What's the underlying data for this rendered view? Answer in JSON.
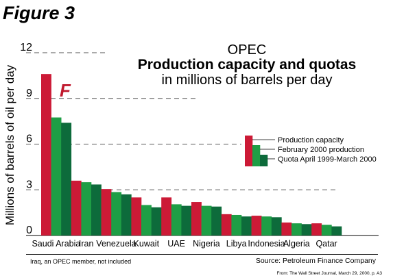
{
  "figure_label": "Figure 3",
  "title_line1": "OPEC",
  "title_line2": "Production capacity and quotas",
  "title_line3": "in millions of barrels per day",
  "annotation_mark": "F",
  "footnote": "Iraq, an OPEC member, not included",
  "source": "Source: Petroleum Finance Company",
  "credit": "From: The Wall Street Journal, March 29, 2000, p. A3",
  "colors": {
    "capacity": "#cc1a36",
    "production": "#1e9e45",
    "quota": "#0d6b3b",
    "mark": "#c0192e"
  },
  "chart_data": {
    "type": "bar",
    "title": "Production capacity and quotas",
    "ylabel": "Millions of barrels of oil per day",
    "xlabel": "",
    "ylim": [
      0,
      12
    ],
    "yticks": [
      0,
      3,
      6,
      9,
      12
    ],
    "grid": "dashed, partial",
    "legend_position": "right",
    "categories": [
      "Saudi Arabia",
      "Iran",
      "Venezuela",
      "Kuwait",
      "UAE",
      "Nigeria",
      "Libya",
      "Indonesia",
      "Algeria",
      "Qatar"
    ],
    "series": [
      {
        "name": "Production capacity",
        "values": [
          10.6,
          3.6,
          3.05,
          2.5,
          2.5,
          2.2,
          1.4,
          1.3,
          0.85,
          0.8
        ]
      },
      {
        "name": "February 2000 production",
        "values": [
          7.75,
          3.5,
          2.85,
          2.0,
          2.05,
          1.95,
          1.35,
          1.25,
          0.8,
          0.7
        ]
      },
      {
        "name": "Quota April 1999-March 2000",
        "values": [
          7.4,
          3.35,
          2.7,
          1.85,
          1.95,
          1.9,
          1.25,
          1.2,
          0.75,
          0.6
        ]
      }
    ]
  }
}
